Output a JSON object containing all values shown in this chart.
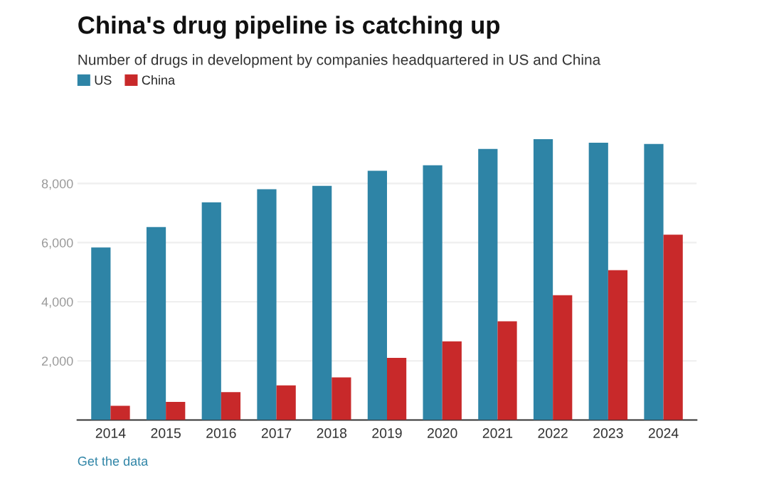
{
  "chart_data": {
    "type": "bar",
    "title": "China's drug pipeline is catching up",
    "subtitle": "Number of drugs in development by companies headquartered in US and China",
    "categories": [
      "2014",
      "2015",
      "2016",
      "2017",
      "2018",
      "2019",
      "2020",
      "2021",
      "2022",
      "2023",
      "2024"
    ],
    "series": [
      {
        "name": "US",
        "color": "#2e84a6",
        "values": [
          5840,
          6530,
          7360,
          7810,
          7920,
          8430,
          8620,
          9170,
          9500,
          9380,
          9340
        ]
      },
      {
        "name": "China",
        "color": "#c8292a",
        "values": [
          480,
          610,
          940,
          1170,
          1440,
          2100,
          2660,
          3340,
          4220,
          5070,
          6270
        ]
      }
    ],
    "ylim": [
      0,
      9500
    ],
    "yticks": [
      {
        "value": 2000,
        "label": "2,000"
      },
      {
        "value": 4000,
        "label": "4,000"
      },
      {
        "value": 6000,
        "label": "6,000"
      },
      {
        "value": 8000,
        "label": "8,000"
      }
    ],
    "grid": "y",
    "legend": "top left",
    "annotations": [
      "Get the data"
    ]
  }
}
